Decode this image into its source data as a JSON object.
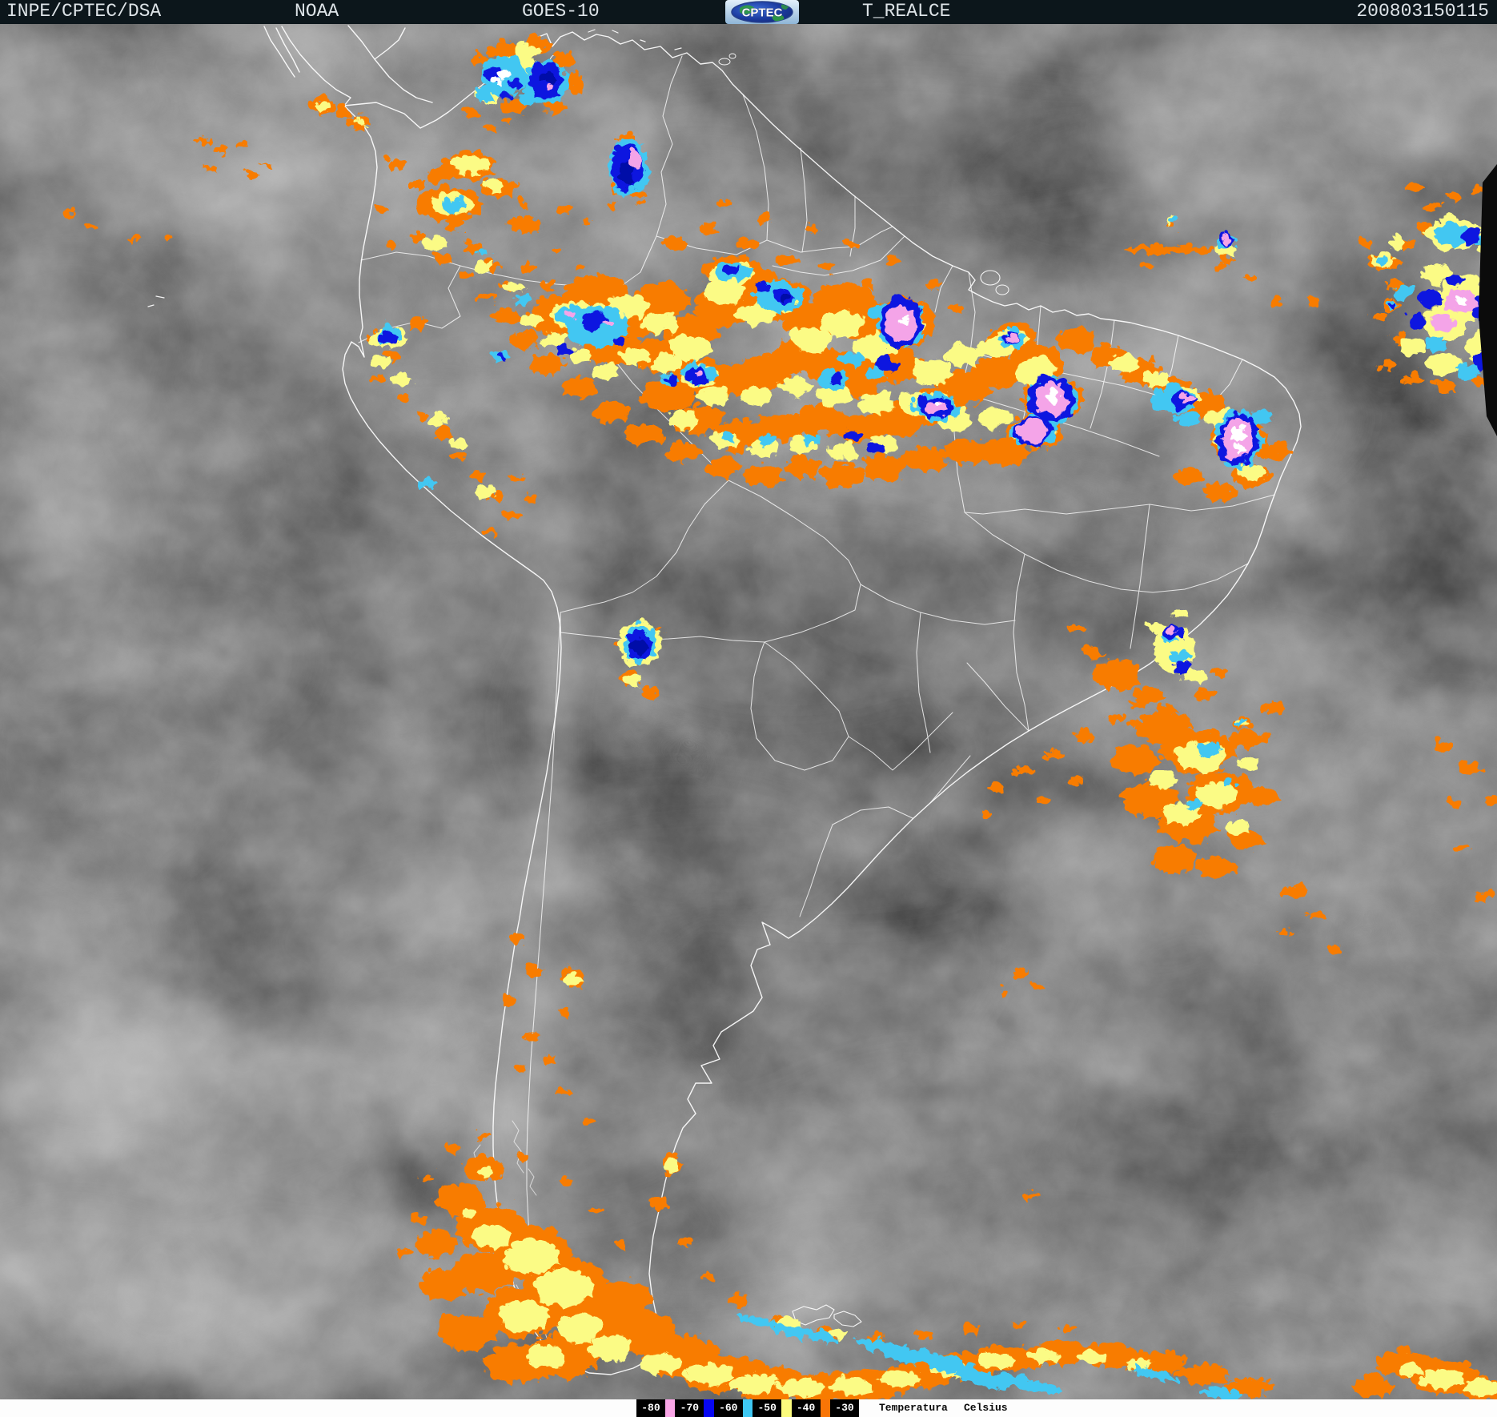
{
  "header": {
    "source": "INPE/CPTEC/DSA",
    "agency": "NOAA",
    "satellite": "GOES-10",
    "logo_text": "CPTEC",
    "product": "T_REALCE",
    "datetime": "200803150115"
  },
  "footer": {
    "temperature_label": "Temperatura",
    "unit_label": "Celsius",
    "legend_cells": [
      {
        "type": "label",
        "text": "-80"
      },
      {
        "type": "swatch",
        "color": "#f9a6e6"
      },
      {
        "type": "label",
        "text": "-70"
      },
      {
        "type": "swatch",
        "color": "#0707f2"
      },
      {
        "type": "label",
        "text": "-60"
      },
      {
        "type": "swatch",
        "color": "#3ec7f2"
      },
      {
        "type": "label",
        "text": "-50"
      },
      {
        "type": "swatch",
        "color": "#fbfb7d"
      },
      {
        "type": "label",
        "text": "-40"
      },
      {
        "type": "swatch",
        "color": "#f97506"
      },
      {
        "type": "label",
        "text": "-30"
      }
    ]
  },
  "enhancement_palette": {
    "orange": "#f87c05",
    "yellow": "#fbfb85",
    "cyan": "#43c7f2",
    "blue": "#0e15e0",
    "navy": "#0007a8",
    "pink": "#f4a4e8",
    "white": "#ffffff"
  },
  "chrome": {
    "topbar_bg": "#0c161b",
    "footer_bg": "#fdfdfd",
    "map_base": "#4d4d4d",
    "border_line": "#ffffff"
  }
}
